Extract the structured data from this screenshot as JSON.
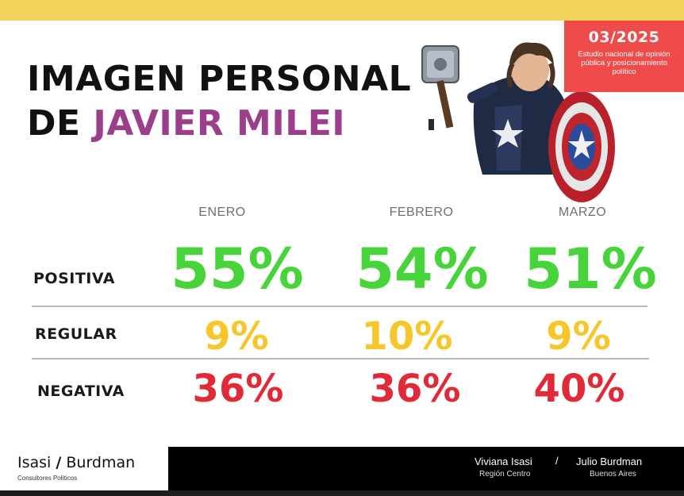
{
  "header": {
    "title_line1": "IMAGEN PERSONAL",
    "title_line2_prefix": "DE",
    "title_line2_name": "JAVIER MILEI",
    "date": "03/2025",
    "study_desc": "Estudio nacional de opinión pública y posicionamiento político"
  },
  "table": {
    "columns": [
      "ENERO",
      "FEBRERO",
      "MARZO"
    ],
    "rows": [
      {
        "label": "POSITIVA",
        "values": [
          "55%",
          "54%",
          "51%"
        ]
      },
      {
        "label": "REGULAR",
        "values": [
          "9%",
          "10%",
          "9%"
        ]
      },
      {
        "label": "NEGATIVA",
        "values": [
          "36%",
          "36%",
          "40%"
        ]
      }
    ]
  },
  "footer": {
    "logo_left": "Isasi",
    "logo_slash": "/",
    "logo_right": "Burdman",
    "logo_sub": "Consultores Políticos",
    "author1_name": "Viviana Isasi",
    "author1_place": "Región Centro",
    "slash": "/",
    "author2_name": "Julio Burdman",
    "author2_place": "Buenos Aires"
  },
  "colors": {
    "positive": "#47d43a",
    "regular": "#f7c62a",
    "negative": "#e02a37",
    "accent": "#9c3f8a",
    "badge": "#ef4b4b",
    "top_bar": "#f3d45a"
  },
  "icons": [
    "hero-illustration",
    "hammer-icon",
    "shield-icon"
  ]
}
